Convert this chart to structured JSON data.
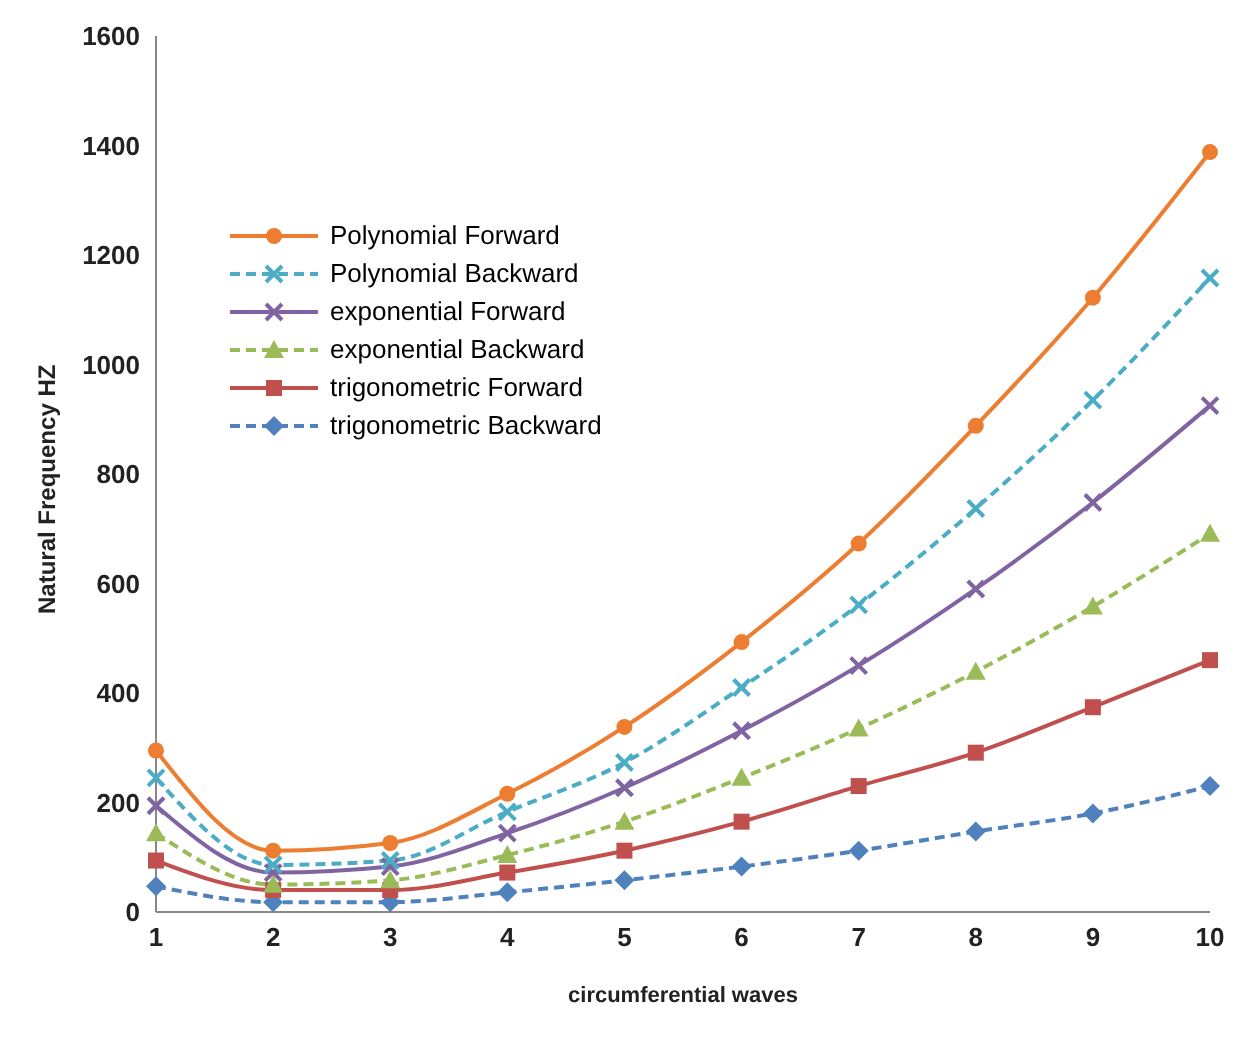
{
  "chart_data": {
    "type": "line",
    "xlabel": "circumferential waves",
    "ylabel": "Natural Frequency  HZ",
    "categories": [
      "1",
      "2",
      "3",
      "4",
      "5",
      "6",
      "7",
      "8",
      "9",
      "10"
    ],
    "ylim": [
      0,
      1600
    ],
    "yticks": [
      0,
      200,
      400,
      600,
      800,
      1000,
      1200,
      1400,
      1600
    ],
    "grid": false,
    "legend": "top left",
    "series": [
      {
        "name": "Polynomial Forward",
        "color": "#ed7d31",
        "marker": "circle",
        "line_style": "solid",
        "values": [
          295,
          112,
          126,
          216,
          338,
          493,
          673,
          888,
          1122,
          1388
        ]
      },
      {
        "name": "Polynomial Backward",
        "color": "#4bacc6",
        "marker": "cross",
        "line_style": "dashed",
        "values": [
          245,
          86,
          94,
          183,
          273,
          410,
          561,
          737,
          935,
          1158
        ]
      },
      {
        "name": "exponential Forward",
        "color": "#8064a2",
        "marker": "cross",
        "line_style": "solid",
        "values": [
          194,
          72,
          83,
          144,
          227,
          331,
          450,
          590,
          748,
          925
        ]
      },
      {
        "name": "exponential Backward",
        "color": "#9bbb59",
        "marker": "triangle",
        "line_style": "dashed",
        "values": [
          144,
          50,
          58,
          104,
          165,
          245,
          335,
          439,
          558,
          691
        ]
      },
      {
        "name": "trigonometric Forward",
        "color": "#c0504d",
        "marker": "square",
        "line_style": "solid",
        "values": [
          94,
          40,
          40,
          72,
          112,
          165,
          230,
          291,
          374,
          460
        ]
      },
      {
        "name": "trigonometric Backward",
        "color": "#4f81bd",
        "marker": "diamond",
        "line_style": "dashed",
        "values": [
          47,
          18,
          18,
          36,
          58,
          83,
          112,
          147,
          180,
          230
        ]
      }
    ]
  }
}
